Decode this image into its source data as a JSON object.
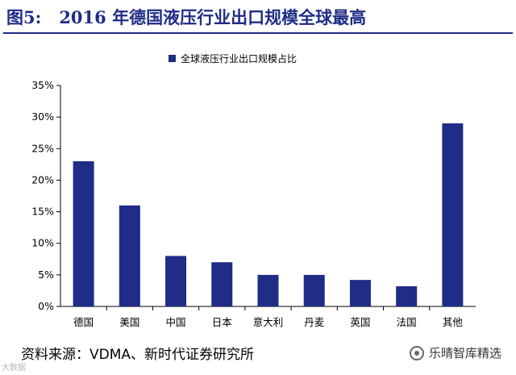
{
  "header": {
    "figure_label": "图5:",
    "figure_title": "2016 年德国液压行业出口规模全球最高"
  },
  "source": "资料来源：VDMA、新时代证券研究所",
  "watermarks": {
    "left": "大数据",
    "right": "乐晴智库精选"
  },
  "colors": {
    "bar": "#1f2d86",
    "title": "#1f2d86"
  },
  "chart_data": {
    "type": "bar",
    "categories": [
      "德国",
      "美国",
      "中国",
      "日本",
      "意大利",
      "丹麦",
      "英国",
      "法国",
      "其他"
    ],
    "series": [
      {
        "name": "全球液压行业出口规模占比",
        "values": [
          23.0,
          16.0,
          8.0,
          7.0,
          5.0,
          5.0,
          4.2,
          3.2,
          29.0
        ]
      }
    ],
    "yticks": [
      "0%",
      "5%",
      "10%",
      "15%",
      "20%",
      "25%",
      "30%",
      "35%"
    ],
    "ylim": [
      0,
      35
    ],
    "grid": false,
    "legend_position": "top-left"
  }
}
